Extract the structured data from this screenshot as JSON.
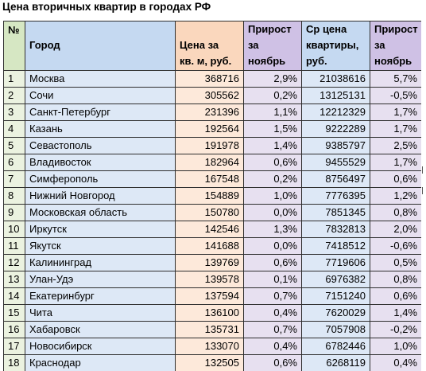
{
  "title": "Цена вторичных квартир в городах РФ",
  "headers": {
    "num": "№",
    "city": "Город",
    "price": [
      "Цена за",
      "кв. м, руб."
    ],
    "growth": [
      "Прирост",
      "за",
      "ноябрь"
    ],
    "avg": [
      "Ср цена",
      "квартиры,",
      "руб."
    ],
    "growth2": [
      "Прирост",
      "за",
      "ноябрь"
    ]
  },
  "rows": [
    {
      "num": "1",
      "city": "Москва",
      "price": "368716",
      "growth": "2,9%",
      "avg": "21038616",
      "growth2": "5,7%"
    },
    {
      "num": "2",
      "city": "Сочи",
      "price": "305562",
      "growth": "0,2%",
      "avg": "13125131",
      "growth2": "-0,5%"
    },
    {
      "num": "3",
      "city": "Санкт-Петербург",
      "price": "231396",
      "growth": "1,1%",
      "avg": "12212329",
      "growth2": "1,7%"
    },
    {
      "num": "4",
      "city": "Казань",
      "price": "192564",
      "growth": "1,5%",
      "avg": "9222289",
      "growth2": "1,7%"
    },
    {
      "num": "5",
      "city": "Севастополь",
      "price": "191978",
      "growth": "1,4%",
      "avg": "9385797",
      "growth2": "2,5%"
    },
    {
      "num": "6",
      "city": "Владивосток",
      "price": "182964",
      "growth": "0,6%",
      "avg": "9455529",
      "growth2": "1,7%"
    },
    {
      "num": "7",
      "city": "Симферополь",
      "price": "167548",
      "growth": "0,2%",
      "avg": "8756497",
      "growth2": "0,6%"
    },
    {
      "num": "8",
      "city": "Нижний Новгород",
      "price": "154889",
      "growth": "1,0%",
      "avg": "7776395",
      "growth2": "1,2%"
    },
    {
      "num": "9",
      "city": "Московская область",
      "price": "150780",
      "growth": "0,0%",
      "avg": "7851345",
      "growth2": "0,8%"
    },
    {
      "num": "10",
      "city": "Иркутск",
      "price": "142546",
      "growth": "1,3%",
      "avg": "7832813",
      "growth2": "2,0%"
    },
    {
      "num": "11",
      "city": "Якутск",
      "price": "141688",
      "growth": "0,0%",
      "avg": "7418512",
      "growth2": "-0,6%"
    },
    {
      "num": "12",
      "city": "Калининград",
      "price": "139769",
      "growth": "0,6%",
      "avg": "7719606",
      "growth2": "0,5%"
    },
    {
      "num": "13",
      "city": "Улан-Удэ",
      "price": "139578",
      "growth": "0,1%",
      "avg": "6976382",
      "growth2": "0,8%"
    },
    {
      "num": "14",
      "city": "Екатеринбург",
      "price": "137594",
      "growth": "0,7%",
      "avg": "7151240",
      "growth2": "0,6%"
    },
    {
      "num": "15",
      "city": "Чита",
      "price": "136100",
      "growth": "0,4%",
      "avg": "7620029",
      "growth2": "1,4%"
    },
    {
      "num": "16",
      "city": "Хабаровск",
      "price": "135731",
      "growth": "0,7%",
      "avg": "7057908",
      "growth2": "-0,2%"
    },
    {
      "num": "17",
      "city": "Новосибирск",
      "price": "133070",
      "growth": "0,4%",
      "avg": "6782446",
      "growth2": "1,0%"
    },
    {
      "num": "18",
      "city": "Краснодар",
      "price": "132505",
      "growth": "0,6%",
      "avg": "6268119",
      "growth2": "0,4%"
    }
  ]
}
